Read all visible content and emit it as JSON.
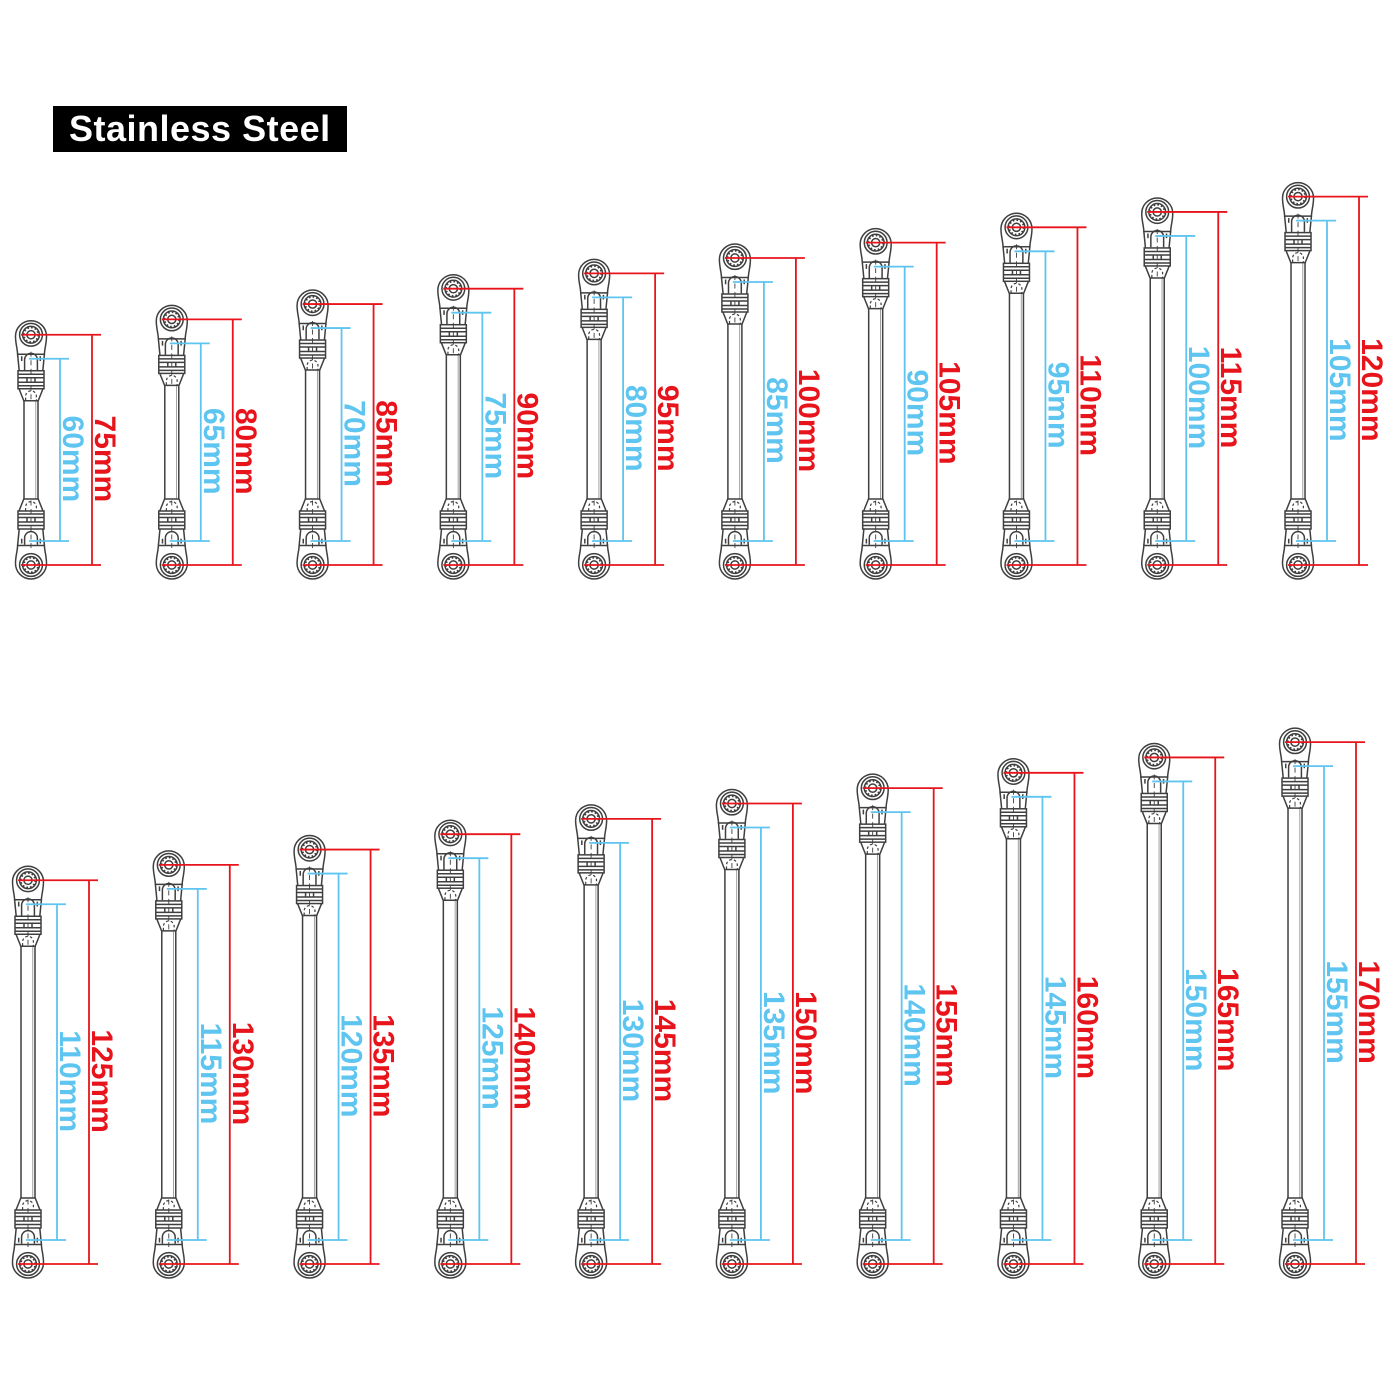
{
  "title": {
    "text": "Stainless Steel"
  },
  "unit": "mm",
  "colors": {
    "outer_dim": "#e8141c",
    "inner_dim": "#5ec4f0",
    "rod_outline": "#3f3f3f",
    "rod_highlight": "#8a8a8a",
    "badge_bg": "#000000",
    "badge_text": "#ffffff",
    "background": "#ffffff"
  },
  "rows": [
    {
      "rods": [
        {
          "outer_mm": 75,
          "inner_mm": 60,
          "outer_label": "75mm",
          "inner_label": "60mm"
        },
        {
          "outer_mm": 80,
          "inner_mm": 65,
          "outer_label": "80mm",
          "inner_label": "65mm"
        },
        {
          "outer_mm": 85,
          "inner_mm": 70,
          "outer_label": "85mm",
          "inner_label": "70mm"
        },
        {
          "outer_mm": 90,
          "inner_mm": 75,
          "outer_label": "90mm",
          "inner_label": "75mm"
        },
        {
          "outer_mm": 95,
          "inner_mm": 80,
          "outer_label": "95mm",
          "inner_label": "80mm"
        },
        {
          "outer_mm": 100,
          "inner_mm": 85,
          "outer_label": "100mm",
          "inner_label": "85mm"
        },
        {
          "outer_mm": 105,
          "inner_mm": 90,
          "outer_label": "105mm",
          "inner_label": "90mm"
        },
        {
          "outer_mm": 110,
          "inner_mm": 95,
          "outer_label": "110mm",
          "inner_label": "95mm"
        },
        {
          "outer_mm": 115,
          "inner_mm": 100,
          "outer_label": "115mm",
          "inner_label": "100mm"
        },
        {
          "outer_mm": 120,
          "inner_mm": 105,
          "outer_label": "120mm",
          "inner_label": "105mm"
        }
      ]
    },
    {
      "rods": [
        {
          "outer_mm": 125,
          "inner_mm": 110,
          "outer_label": "125mm",
          "inner_label": "110mm"
        },
        {
          "outer_mm": 130,
          "inner_mm": 115,
          "outer_label": "130mm",
          "inner_label": "115mm"
        },
        {
          "outer_mm": 135,
          "inner_mm": 120,
          "outer_label": "135mm",
          "inner_label": "120mm"
        },
        {
          "outer_mm": 140,
          "inner_mm": 125,
          "outer_label": "140mm",
          "inner_label": "125mm"
        },
        {
          "outer_mm": 145,
          "inner_mm": 130,
          "outer_label": "145mm",
          "inner_label": "130mm"
        },
        {
          "outer_mm": 150,
          "inner_mm": 135,
          "outer_label": "150mm",
          "inner_label": "135mm"
        },
        {
          "outer_mm": 155,
          "inner_mm": 140,
          "outer_label": "155mm",
          "inner_label": "140mm"
        },
        {
          "outer_mm": 160,
          "inner_mm": 145,
          "outer_label": "160mm",
          "inner_label": "145mm"
        },
        {
          "outer_mm": 165,
          "inner_mm": 150,
          "outer_label": "165mm",
          "inner_label": "150mm"
        },
        {
          "outer_mm": 170,
          "inner_mm": 155,
          "outer_label": "170mm",
          "inner_label": "155mm"
        }
      ]
    }
  ]
}
